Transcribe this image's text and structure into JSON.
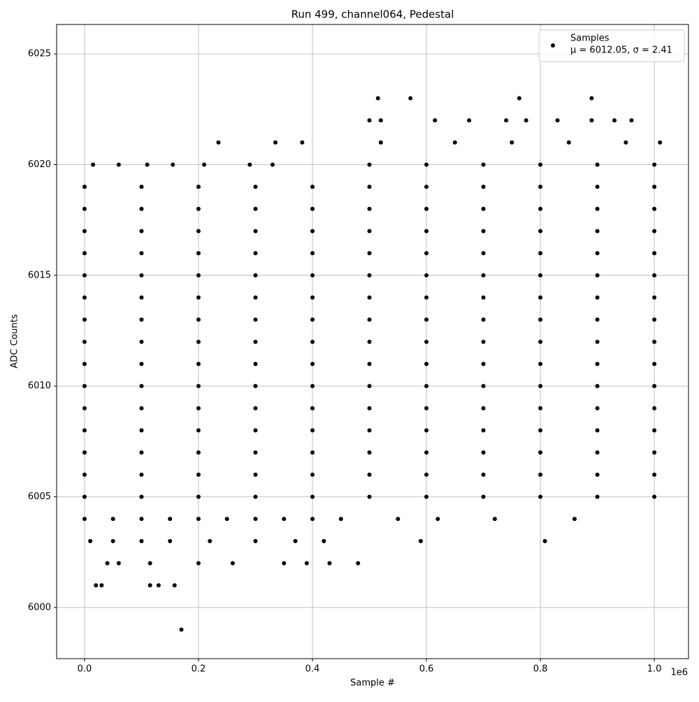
{
  "chart_data": {
    "type": "scatter",
    "title": "Run 499, channel064, Pedestal",
    "x_label": "Sample #",
    "y_label": "ADC Counts",
    "x_offset_label": "1e6",
    "legend_stats": "μ = 6012.05, σ = 2.41",
    "legend_position": "upper right",
    "grid": true,
    "xlim": [
      -49000,
      1060000
    ],
    "ylim": [
      5997.69,
      6026.33
    ],
    "xticks": [
      {
        "value": 0,
        "label": "0.0"
      },
      {
        "value": 200000,
        "label": "0.2"
      },
      {
        "value": 400000,
        "label": "0.4"
      },
      {
        "value": 600000,
        "label": "0.6"
      },
      {
        "value": 800000,
        "label": "0.8"
      },
      {
        "value": 1000000,
        "label": "1.0"
      }
    ],
    "yticks": [
      6000,
      6005,
      6010,
      6015,
      6020,
      6025
    ],
    "series": [
      {
        "name": "Samples",
        "color": "#000000",
        "x": [
          0,
          100000,
          200000,
          300000,
          400000,
          500000,
          600000,
          700000,
          800000,
          900000,
          1000000,
          0,
          100000,
          200000,
          300000,
          400000,
          500000,
          600000,
          700000,
          800000,
          900000,
          1000000,
          0,
          100000,
          200000,
          300000,
          400000,
          500000,
          600000,
          700000,
          800000,
          900000,
          1000000,
          0,
          100000,
          200000,
          300000,
          400000,
          500000,
          600000,
          700000,
          800000,
          900000,
          1000000,
          0,
          100000,
          200000,
          300000,
          400000,
          500000,
          600000,
          700000,
          800000,
          900000,
          1000000,
          0,
          100000,
          200000,
          300000,
          400000,
          500000,
          600000,
          700000,
          800000,
          900000,
          1000000,
          0,
          100000,
          200000,
          300000,
          400000,
          500000,
          600000,
          700000,
          800000,
          900000,
          1000000,
          0,
          100000,
          200000,
          300000,
          400000,
          500000,
          600000,
          700000,
          800000,
          900000,
          1000000,
          0,
          100000,
          200000,
          300000,
          400000,
          500000,
          600000,
          700000,
          800000,
          900000,
          1000000,
          0,
          100000,
          200000,
          300000,
          400000,
          500000,
          600000,
          700000,
          800000,
          900000,
          1000000,
          0,
          100000,
          200000,
          300000,
          400000,
          500000,
          600000,
          700000,
          800000,
          900000,
          1000000,
          0,
          100000,
          200000,
          300000,
          400000,
          500000,
          600000,
          700000,
          800000,
          900000,
          1000000,
          0,
          100000,
          200000,
          300000,
          400000,
          500000,
          600000,
          700000,
          800000,
          900000,
          1000000,
          0,
          100000,
          200000,
          300000,
          400000,
          500000,
          600000,
          700000,
          800000,
          900000,
          1000000,
          0,
          100000,
          200000,
          300000,
          400000,
          500000,
          600000,
          700000,
          800000,
          900000,
          1000000,
          170000,
          20000,
          30000,
          115000,
          130000,
          158000,
          40000,
          60000,
          115000,
          200000,
          260000,
          350000,
          390000,
          430000,
          480000,
          10000,
          50000,
          100000,
          150000,
          220000,
          300000,
          370000,
          420000,
          590000,
          808000,
          0,
          50000,
          100000,
          150000,
          200000,
          250000,
          300000,
          350000,
          400000,
          450000,
          550000,
          620000,
          720000,
          860000,
          15000,
          60000,
          110000,
          155000,
          210000,
          290000,
          330000,
          500000,
          600000,
          700000,
          800000,
          900000,
          1000000,
          235000,
          335000,
          382000,
          520000,
          650000,
          750000,
          850000,
          950000,
          1010000,
          500000,
          520000,
          615000,
          675000,
          740000,
          775000,
          830000,
          890000,
          930000,
          960000,
          515000,
          572000,
          763000,
          890000
        ],
        "values": [
          6005,
          6005,
          6005,
          6005,
          6005,
          6005,
          6005,
          6005,
          6005,
          6005,
          6005,
          6006,
          6006,
          6006,
          6006,
          6006,
          6006,
          6006,
          6006,
          6006,
          6006,
          6006,
          6007,
          6007,
          6007,
          6007,
          6007,
          6007,
          6007,
          6007,
          6007,
          6007,
          6007,
          6008,
          6008,
          6008,
          6008,
          6008,
          6008,
          6008,
          6008,
          6008,
          6008,
          6008,
          6009,
          6009,
          6009,
          6009,
          6009,
          6009,
          6009,
          6009,
          6009,
          6009,
          6009,
          6010,
          6010,
          6010,
          6010,
          6010,
          6010,
          6010,
          6010,
          6010,
          6010,
          6010,
          6011,
          6011,
          6011,
          6011,
          6011,
          6011,
          6011,
          6011,
          6011,
          6011,
          6011,
          6012,
          6012,
          6012,
          6012,
          6012,
          6012,
          6012,
          6012,
          6012,
          6012,
          6012,
          6013,
          6013,
          6013,
          6013,
          6013,
          6013,
          6013,
          6013,
          6013,
          6013,
          6013,
          6014,
          6014,
          6014,
          6014,
          6014,
          6014,
          6014,
          6014,
          6014,
          6014,
          6014,
          6015,
          6015,
          6015,
          6015,
          6015,
          6015,
          6015,
          6015,
          6015,
          6015,
          6015,
          6016,
          6016,
          6016,
          6016,
          6016,
          6016,
          6016,
          6016,
          6016,
          6016,
          6016,
          6017,
          6017,
          6017,
          6017,
          6017,
          6017,
          6017,
          6017,
          6017,
          6017,
          6017,
          6018,
          6018,
          6018,
          6018,
          6018,
          6018,
          6018,
          6018,
          6018,
          6018,
          6018,
          6019,
          6019,
          6019,
          6019,
          6019,
          6019,
          6019,
          6019,
          6019,
          6019,
          6019,
          5999,
          6001,
          6001,
          6001,
          6001,
          6001,
          6002,
          6002,
          6002,
          6002,
          6002,
          6002,
          6002,
          6002,
          6002,
          6003,
          6003,
          6003,
          6003,
          6003,
          6003,
          6003,
          6003,
          6003,
          6003,
          6004,
          6004,
          6004,
          6004,
          6004,
          6004,
          6004,
          6004,
          6004,
          6004,
          6004,
          6004,
          6004,
          6004,
          6020,
          6020,
          6020,
          6020,
          6020,
          6020,
          6020,
          6020,
          6020,
          6020,
          6020,
          6020,
          6020,
          6021,
          6021,
          6021,
          6021,
          6021,
          6021,
          6021,
          6021,
          6021,
          6022,
          6022,
          6022,
          6022,
          6022,
          6022,
          6022,
          6022,
          6022,
          6022,
          6023,
          6023,
          6023,
          6023
        ]
      }
    ]
  }
}
